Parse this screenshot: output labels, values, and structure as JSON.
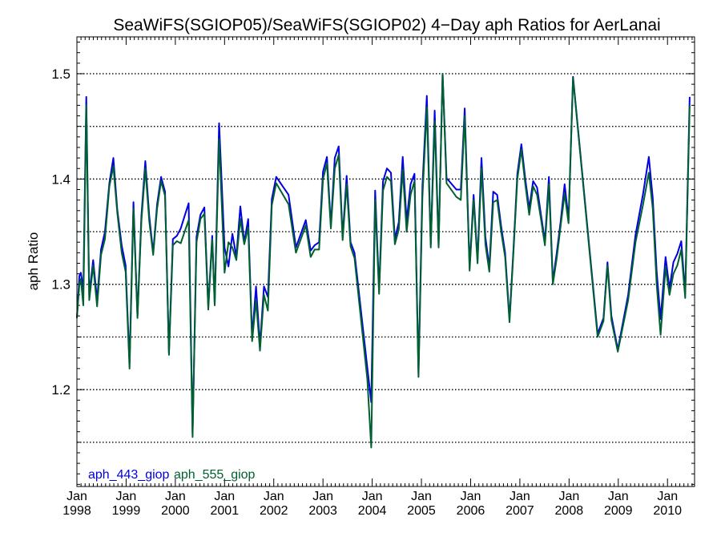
{
  "chart_data": {
    "type": "line",
    "title": "SeaWiFS(SGIOP05)/SeaWiFS(SGIOP02) 4−Day aph Ratios for AerLanai",
    "xlabel": "",
    "ylabel": "aph Ratio",
    "xlim": [
      1998.0,
      2010.55
    ],
    "ylim": [
      1.108,
      1.535
    ],
    "yticks": [
      1.2,
      1.3,
      1.4,
      1.5
    ],
    "ygrid": [
      1.15,
      1.2,
      1.25,
      1.3,
      1.35,
      1.4,
      1.45,
      1.5
    ],
    "xticks": [
      {
        "x": 1998,
        "month": "Jan",
        "year": "1998"
      },
      {
        "x": 1999,
        "month": "Jan",
        "year": "1999"
      },
      {
        "x": 2000,
        "month": "Jan",
        "year": "2000"
      },
      {
        "x": 2001,
        "month": "Jan",
        "year": "2001"
      },
      {
        "x": 2002,
        "month": "Jan",
        "year": "2002"
      },
      {
        "x": 2003,
        "month": "Jan",
        "year": "2003"
      },
      {
        "x": 2004,
        "month": "Jan",
        "year": "2004"
      },
      {
        "x": 2005,
        "month": "Jan",
        "year": "2005"
      },
      {
        "x": 2006,
        "month": "Jan",
        "year": "2006"
      },
      {
        "x": 2007,
        "month": "Jan",
        "year": "2007"
      },
      {
        "x": 2008,
        "month": "Jan",
        "year": "2008"
      },
      {
        "x": 2009,
        "month": "Jan",
        "year": "2009"
      },
      {
        "x": 2010,
        "month": "Jan",
        "year": "2010"
      }
    ],
    "grid": "horizontal dotted",
    "legend_placement": "bottom-left",
    "series": [
      {
        "name": "aph_443_giop",
        "color": "#0000e0",
        "points": [
          [
            1998.0,
            1.268
          ],
          [
            1998.05,
            1.308
          ],
          [
            1998.08,
            1.311
          ],
          [
            1998.13,
            1.295
          ],
          [
            1998.19,
            1.478
          ],
          [
            1998.25,
            1.29
          ],
          [
            1998.33,
            1.323
          ],
          [
            1998.41,
            1.285
          ],
          [
            1998.49,
            1.333
          ],
          [
            1998.57,
            1.35
          ],
          [
            1998.66,
            1.396
          ],
          [
            1998.74,
            1.42
          ],
          [
            1998.82,
            1.371
          ],
          [
            1998.91,
            1.337
          ],
          [
            1998.99,
            1.318
          ],
          [
            1999.07,
            1.225
          ],
          [
            1999.15,
            1.378
          ],
          [
            1999.23,
            1.27
          ],
          [
            1999.31,
            1.365
          ],
          [
            1999.39,
            1.417
          ],
          [
            1999.47,
            1.365
          ],
          [
            1999.55,
            1.33
          ],
          [
            1999.63,
            1.376
          ],
          [
            1999.71,
            1.402
          ],
          [
            1999.79,
            1.388
          ],
          [
            1999.87,
            1.235
          ],
          [
            1999.95,
            1.343
          ],
          [
            2000.03,
            1.346
          ],
          [
            2000.11,
            1.353
          ],
          [
            2000.19,
            1.365
          ],
          [
            2000.27,
            1.377
          ],
          [
            2000.35,
            1.158
          ],
          [
            2000.43,
            1.345
          ],
          [
            2000.51,
            1.366
          ],
          [
            2000.59,
            1.373
          ],
          [
            2000.67,
            1.279
          ],
          [
            2000.75,
            1.346
          ],
          [
            2000.8,
            1.282
          ],
          [
            2000.89,
            1.453
          ],
          [
            2001.0,
            1.335
          ],
          [
            2001.08,
            1.317
          ],
          [
            2001.16,
            1.348
          ],
          [
            2001.24,
            1.326
          ],
          [
            2001.32,
            1.374
          ],
          [
            2001.4,
            1.34
          ],
          [
            2001.48,
            1.362
          ],
          [
            2001.56,
            1.25
          ],
          [
            2001.64,
            1.298
          ],
          [
            2001.72,
            1.242
          ],
          [
            2001.8,
            1.298
          ],
          [
            2001.88,
            1.288
          ],
          [
            2001.96,
            1.381
          ],
          [
            2002.05,
            1.402
          ],
          [
            2002.3,
            1.385
          ],
          [
            2002.45,
            1.335
          ],
          [
            2002.65,
            1.361
          ],
          [
            2002.75,
            1.332
          ],
          [
            2002.83,
            1.337
          ],
          [
            2002.92,
            1.34
          ],
          [
            2003.0,
            1.407
          ],
          [
            2003.08,
            1.421
          ],
          [
            2003.16,
            1.356
          ],
          [
            2003.24,
            1.42
          ],
          [
            2003.32,
            1.431
          ],
          [
            2003.4,
            1.345
          ],
          [
            2003.48,
            1.403
          ],
          [
            2003.56,
            1.34
          ],
          [
            2003.64,
            1.33
          ],
          [
            2003.9,
            1.221
          ],
          [
            2003.98,
            1.188
          ],
          [
            2004.06,
            1.389
          ],
          [
            2004.14,
            1.295
          ],
          [
            2004.22,
            1.398
          ],
          [
            2004.3,
            1.41
          ],
          [
            2004.38,
            1.406
          ],
          [
            2004.46,
            1.343
          ],
          [
            2004.54,
            1.359
          ],
          [
            2004.62,
            1.421
          ],
          [
            2004.7,
            1.36
          ],
          [
            2004.78,
            1.395
          ],
          [
            2004.86,
            1.405
          ],
          [
            2004.94,
            1.216
          ],
          [
            2005.02,
            1.393
          ],
          [
            2005.11,
            1.479
          ],
          [
            2005.19,
            1.338
          ],
          [
            2005.27,
            1.465
          ],
          [
            2005.35,
            1.338
          ],
          [
            2005.43,
            1.5
          ],
          [
            2005.51,
            1.401
          ],
          [
            2005.71,
            1.39
          ],
          [
            2005.8,
            1.39
          ],
          [
            2005.88,
            1.467
          ],
          [
            2005.98,
            1.316
          ],
          [
            2006.06,
            1.385
          ],
          [
            2006.14,
            1.323
          ],
          [
            2006.22,
            1.42
          ],
          [
            2006.3,
            1.345
          ],
          [
            2006.38,
            1.316
          ],
          [
            2006.46,
            1.388
          ],
          [
            2006.54,
            1.385
          ],
          [
            2006.62,
            1.355
          ],
          [
            2006.7,
            1.33
          ],
          [
            2006.79,
            1.267
          ],
          [
            2006.87,
            1.333
          ],
          [
            2006.95,
            1.405
          ],
          [
            2007.03,
            1.433
          ],
          [
            2007.11,
            1.4
          ],
          [
            2007.19,
            1.372
          ],
          [
            2007.27,
            1.398
          ],
          [
            2007.35,
            1.392
          ],
          [
            2007.43,
            1.366
          ],
          [
            2007.51,
            1.341
          ],
          [
            2007.59,
            1.402
          ],
          [
            2007.67,
            1.303
          ],
          [
            2007.75,
            1.33
          ],
          [
            2007.83,
            1.36
          ],
          [
            2007.91,
            1.395
          ],
          [
            2007.99,
            1.362
          ],
          [
            2008.08,
            1.497
          ],
          [
            2008.58,
            1.253
          ],
          [
            2008.7,
            1.268
          ],
          [
            2008.78,
            1.321
          ],
          [
            2008.86,
            1.27
          ],
          [
            2008.99,
            1.238
          ],
          [
            2009.2,
            1.29
          ],
          [
            2009.35,
            1.347
          ],
          [
            2009.5,
            1.385
          ],
          [
            2009.62,
            1.421
          ],
          [
            2009.7,
            1.382
          ],
          [
            2009.78,
            1.312
          ],
          [
            2009.86,
            1.267
          ],
          [
            2009.96,
            1.326
          ],
          [
            2010.04,
            1.296
          ],
          [
            2010.12,
            1.321
          ],
          [
            2010.2,
            1.329
          ],
          [
            2010.28,
            1.341
          ],
          [
            2010.36,
            1.291
          ],
          [
            2010.45,
            1.478
          ]
        ]
      },
      {
        "name": "aph_555_giop",
        "color": "#006030",
        "points": [
          [
            1998.0,
            1.268
          ],
          [
            1998.05,
            1.3
          ],
          [
            1998.08,
            1.305
          ],
          [
            1998.13,
            1.28
          ],
          [
            1998.19,
            1.47
          ],
          [
            1998.25,
            1.285
          ],
          [
            1998.33,
            1.318
          ],
          [
            1998.41,
            1.279
          ],
          [
            1998.49,
            1.328
          ],
          [
            1998.57,
            1.343
          ],
          [
            1998.66,
            1.393
          ],
          [
            1998.74,
            1.412
          ],
          [
            1998.82,
            1.368
          ],
          [
            1998.91,
            1.33
          ],
          [
            1998.99,
            1.312
          ],
          [
            1999.07,
            1.22
          ],
          [
            1999.15,
            1.372
          ],
          [
            1999.23,
            1.268
          ],
          [
            1999.31,
            1.36
          ],
          [
            1999.39,
            1.41
          ],
          [
            1999.47,
            1.36
          ],
          [
            1999.55,
            1.328
          ],
          [
            1999.63,
            1.372
          ],
          [
            1999.71,
            1.398
          ],
          [
            1999.79,
            1.384
          ],
          [
            1999.87,
            1.233
          ],
          [
            1999.95,
            1.337
          ],
          [
            2000.03,
            1.341
          ],
          [
            2000.11,
            1.339
          ],
          [
            2000.19,
            1.35
          ],
          [
            2000.27,
            1.361
          ],
          [
            2000.35,
            1.155
          ],
          [
            2000.43,
            1.34
          ],
          [
            2000.51,
            1.362
          ],
          [
            2000.59,
            1.367
          ],
          [
            2000.67,
            1.276
          ],
          [
            2000.75,
            1.343
          ],
          [
            2000.8,
            1.28
          ],
          [
            2000.89,
            1.438
          ],
          [
            2001.0,
            1.311
          ],
          [
            2001.08,
            1.34
          ],
          [
            2001.16,
            1.335
          ],
          [
            2001.24,
            1.323
          ],
          [
            2001.32,
            1.362
          ],
          [
            2001.4,
            1.338
          ],
          [
            2001.48,
            1.354
          ],
          [
            2001.56,
            1.246
          ],
          [
            2001.64,
            1.285
          ],
          [
            2001.72,
            1.237
          ],
          [
            2001.8,
            1.29
          ],
          [
            2001.88,
            1.275
          ],
          [
            2001.96,
            1.375
          ],
          [
            2002.05,
            1.396
          ],
          [
            2002.3,
            1.376
          ],
          [
            2002.45,
            1.33
          ],
          [
            2002.65,
            1.356
          ],
          [
            2002.75,
            1.326
          ],
          [
            2002.83,
            1.333
          ],
          [
            2002.92,
            1.333
          ],
          [
            2003.0,
            1.4
          ],
          [
            2003.08,
            1.415
          ],
          [
            2003.16,
            1.353
          ],
          [
            2003.24,
            1.41
          ],
          [
            2003.32,
            1.423
          ],
          [
            2003.4,
            1.342
          ],
          [
            2003.48,
            1.395
          ],
          [
            2003.56,
            1.336
          ],
          [
            2003.64,
            1.325
          ],
          [
            2003.9,
            1.21
          ],
          [
            2003.98,
            1.145
          ],
          [
            2004.06,
            1.38
          ],
          [
            2004.14,
            1.291
          ],
          [
            2004.22,
            1.389
          ],
          [
            2004.3,
            1.402
          ],
          [
            2004.38,
            1.398
          ],
          [
            2004.46,
            1.338
          ],
          [
            2004.54,
            1.352
          ],
          [
            2004.62,
            1.409
          ],
          [
            2004.7,
            1.35
          ],
          [
            2004.78,
            1.385
          ],
          [
            2004.86,
            1.398
          ],
          [
            2004.94,
            1.212
          ],
          [
            2005.02,
            1.383
          ],
          [
            2005.11,
            1.468
          ],
          [
            2005.19,
            1.335
          ],
          [
            2005.27,
            1.455
          ],
          [
            2005.35,
            1.335
          ],
          [
            2005.43,
            1.5
          ],
          [
            2005.51,
            1.396
          ],
          [
            2005.71,
            1.383
          ],
          [
            2005.8,
            1.38
          ],
          [
            2005.88,
            1.46
          ],
          [
            2005.98,
            1.313
          ],
          [
            2006.06,
            1.38
          ],
          [
            2006.14,
            1.32
          ],
          [
            2006.22,
            1.41
          ],
          [
            2006.3,
            1.338
          ],
          [
            2006.38,
            1.312
          ],
          [
            2006.46,
            1.378
          ],
          [
            2006.54,
            1.38
          ],
          [
            2006.62,
            1.35
          ],
          [
            2006.7,
            1.326
          ],
          [
            2006.79,
            1.264
          ],
          [
            2006.87,
            1.33
          ],
          [
            2006.95,
            1.4
          ],
          [
            2007.03,
            1.428
          ],
          [
            2007.11,
            1.395
          ],
          [
            2007.19,
            1.366
          ],
          [
            2007.27,
            1.393
          ],
          [
            2007.35,
            1.385
          ],
          [
            2007.43,
            1.362
          ],
          [
            2007.51,
            1.337
          ],
          [
            2007.59,
            1.395
          ],
          [
            2007.67,
            1.3
          ],
          [
            2007.75,
            1.325
          ],
          [
            2007.83,
            1.356
          ],
          [
            2007.91,
            1.386
          ],
          [
            2007.99,
            1.358
          ],
          [
            2008.08,
            1.496
          ],
          [
            2008.58,
            1.25
          ],
          [
            2008.7,
            1.265
          ],
          [
            2008.78,
            1.318
          ],
          [
            2008.86,
            1.266
          ],
          [
            2008.99,
            1.236
          ],
          [
            2009.2,
            1.285
          ],
          [
            2009.35,
            1.34
          ],
          [
            2009.5,
            1.375
          ],
          [
            2009.62,
            1.406
          ],
          [
            2009.7,
            1.372
          ],
          [
            2009.78,
            1.3
          ],
          [
            2009.86,
            1.252
          ],
          [
            2009.96,
            1.316
          ],
          [
            2010.04,
            1.29
          ],
          [
            2010.12,
            1.31
          ],
          [
            2010.2,
            1.318
          ],
          [
            2010.28,
            1.333
          ],
          [
            2010.36,
            1.287
          ],
          [
            2010.45,
            1.47
          ]
        ]
      }
    ]
  }
}
